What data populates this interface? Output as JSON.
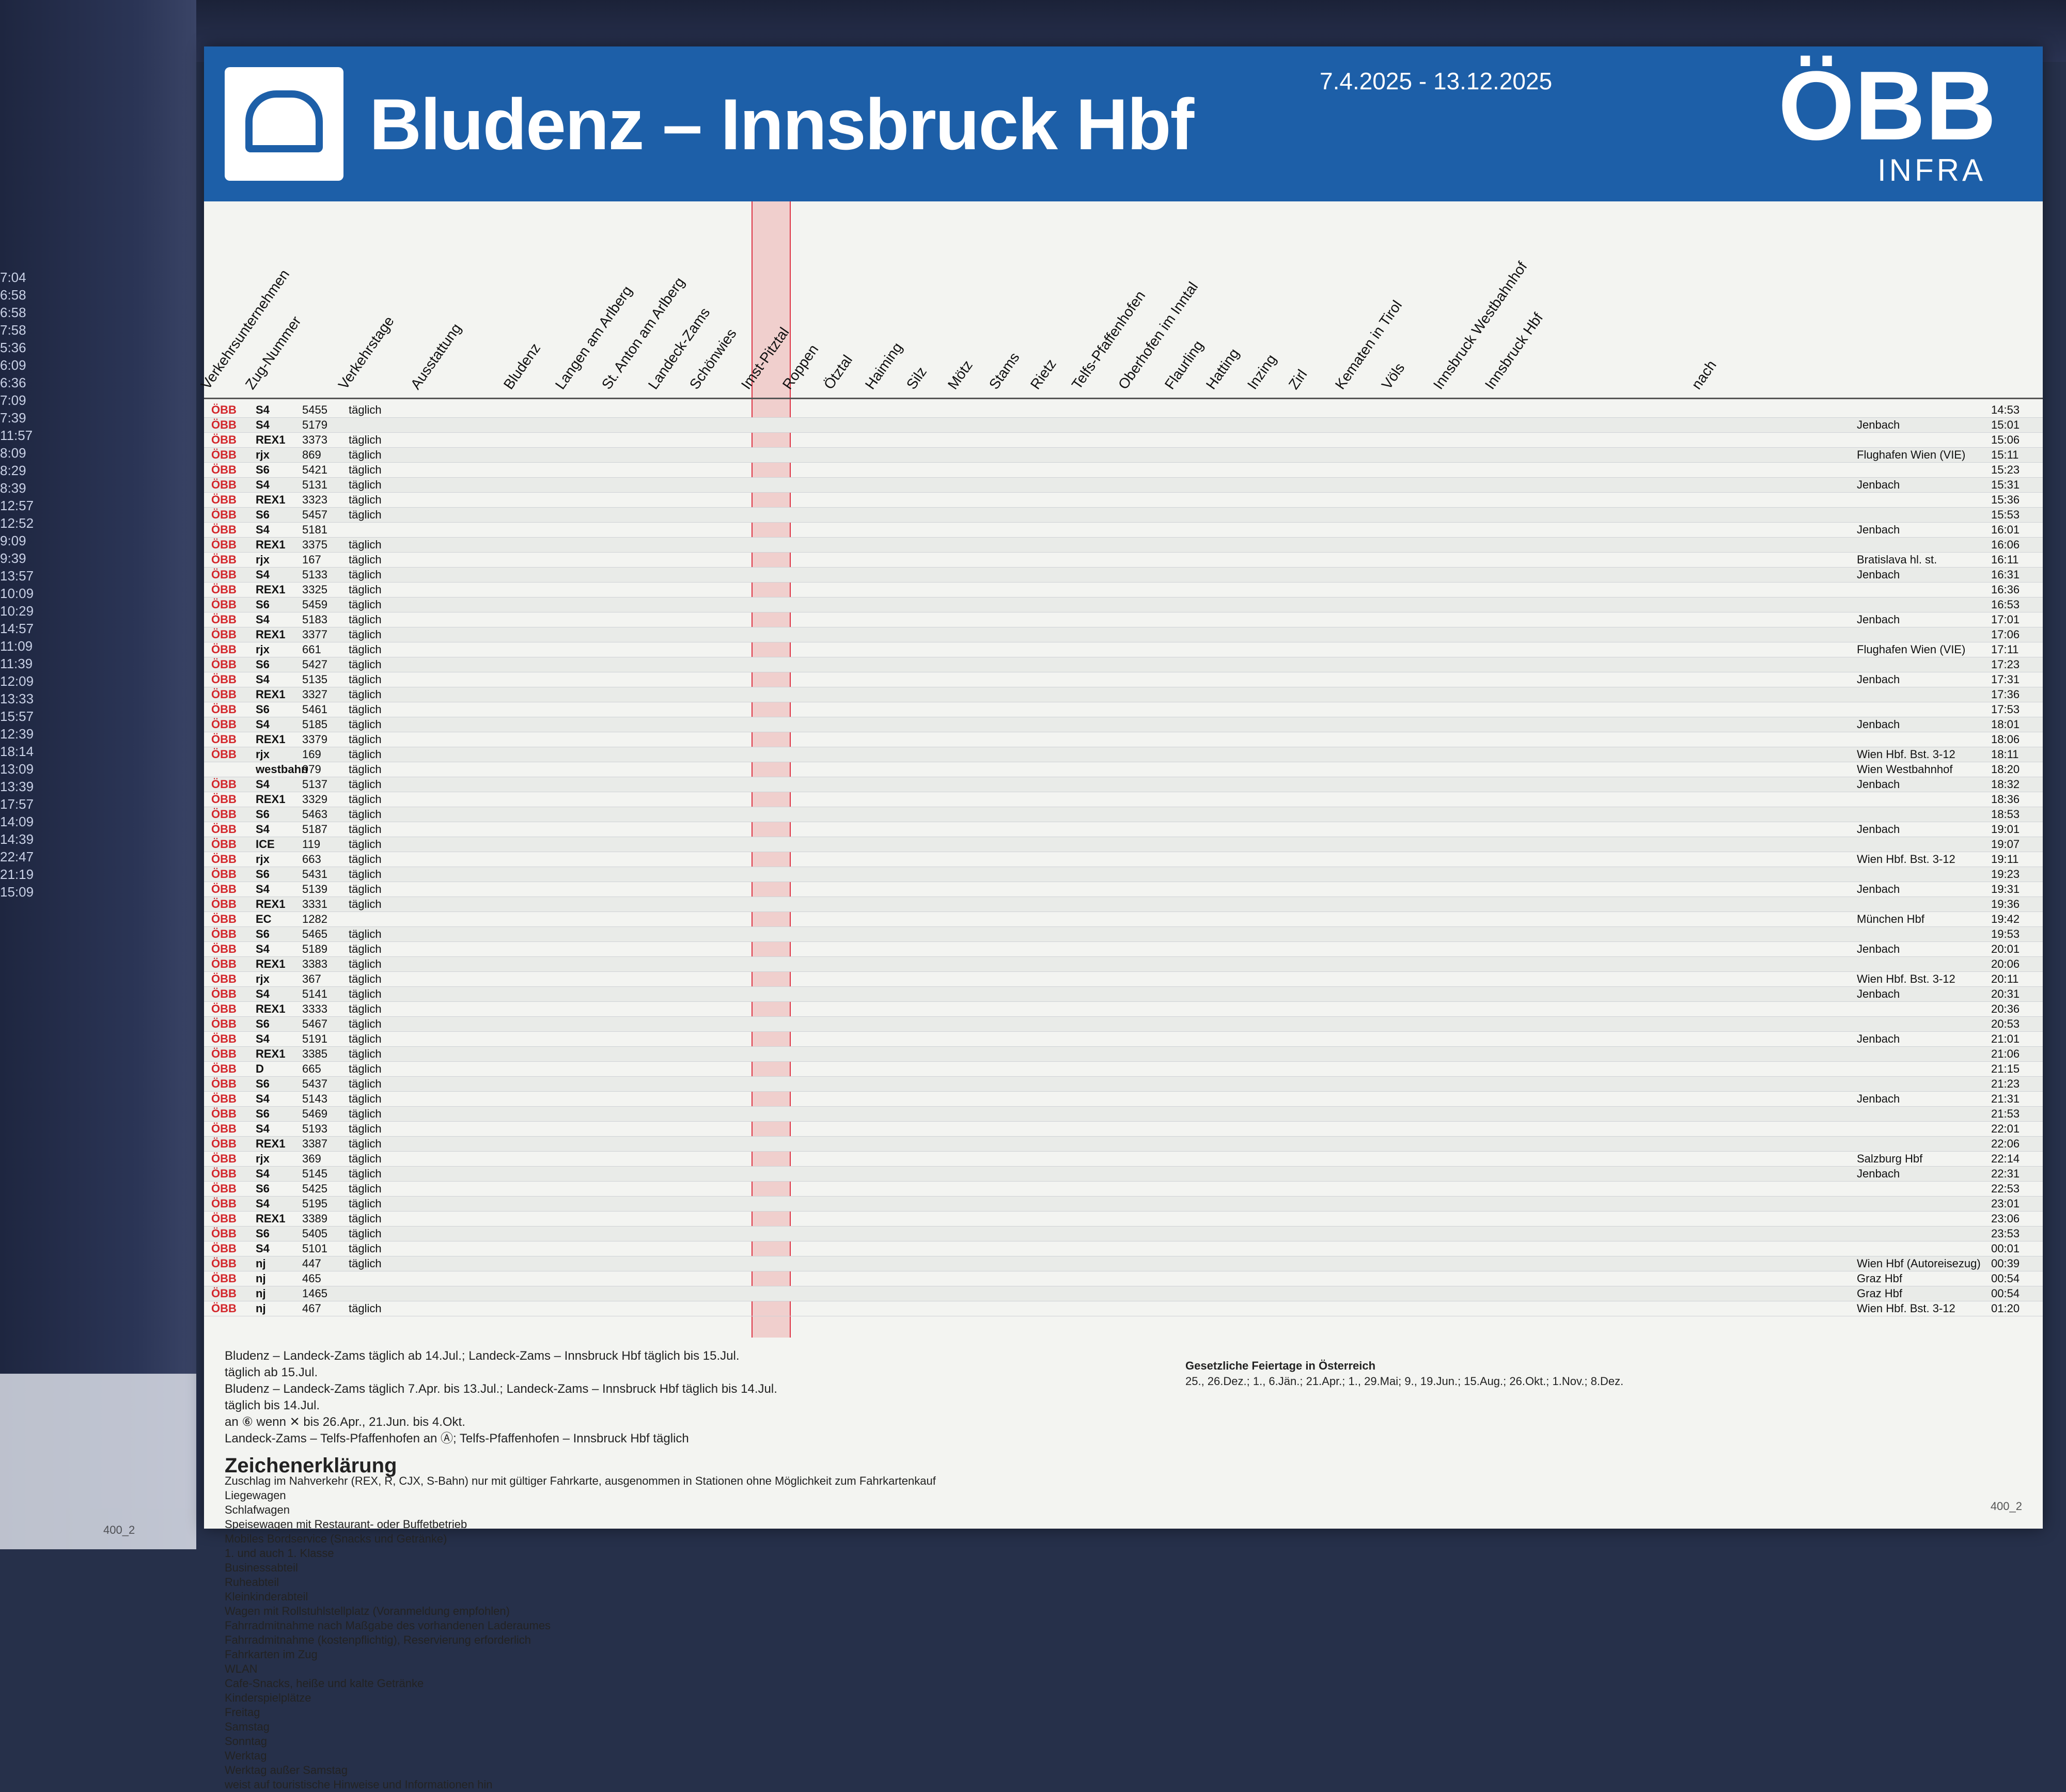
{
  "header": {
    "title": "Bludenz – Innsbruck Hbf",
    "validity": "7.4.2025 - 13.12.2025",
    "brand": "ÖBB",
    "brand_sub": "INFRA"
  },
  "columns": [
    "Verkehrsunternehmen",
    "Zug-Nummer",
    "Verkehrstage",
    "Ausstattung",
    "Bludenz",
    "Langen am Arlberg",
    "St. Anton am Arlberg",
    "Landeck-Zams",
    "Schönwies",
    "Imst-Pitztal",
    "Roppen",
    "Ötztal",
    "Haiming",
    "Silz",
    "Mötz",
    "Stams",
    "Rietz",
    "Telfs-Pfaffenhofen",
    "Oberhofen im Inntal",
    "Flaurling",
    "Hatting",
    "Inzing",
    "Zirl",
    "Kematen in Tirol",
    "Völs",
    "Innsbruck Westbahnhof",
    "Innsbruck Hbf",
    "nach"
  ],
  "rows": [
    {
      "op": "ÖBB",
      "type": "S4",
      "nr": "5455",
      "days": "täglich",
      "dest": "",
      "arr": "14:53"
    },
    {
      "op": "ÖBB",
      "type": "S4",
      "nr": "5179",
      "days": "",
      "dest": "Jenbach",
      "arr": "15:01"
    },
    {
      "op": "ÖBB",
      "type": "REX1",
      "nr": "3373",
      "days": "täglich",
      "dest": "",
      "arr": "15:06"
    },
    {
      "op": "ÖBB",
      "type": "rjx",
      "nr": "869",
      "days": "täglich",
      "dest": "Flughafen Wien (VIE)",
      "arr": "15:11"
    },
    {
      "op": "ÖBB",
      "type": "S6",
      "nr": "5421",
      "days": "täglich",
      "dest": "",
      "arr": "15:23"
    },
    {
      "op": "ÖBB",
      "type": "S4",
      "nr": "5131",
      "days": "täglich",
      "dest": "Jenbach",
      "arr": "15:31"
    },
    {
      "op": "ÖBB",
      "type": "REX1",
      "nr": "3323",
      "days": "täglich",
      "dest": "",
      "arr": "15:36"
    },
    {
      "op": "ÖBB",
      "type": "S6",
      "nr": "5457",
      "days": "täglich",
      "dest": "",
      "arr": "15:53"
    },
    {
      "op": "ÖBB",
      "type": "S4",
      "nr": "5181",
      "days": "",
      "dest": "Jenbach",
      "arr": "16:01"
    },
    {
      "op": "ÖBB",
      "type": "REX1",
      "nr": "3375",
      "days": "täglich",
      "dest": "",
      "arr": "16:06"
    },
    {
      "op": "ÖBB",
      "type": "rjx",
      "nr": "167",
      "days": "täglich",
      "dest": "Bratislava hl. st.",
      "arr": "16:11"
    },
    {
      "op": "ÖBB",
      "type": "S4",
      "nr": "5133",
      "days": "täglich",
      "dest": "Jenbach",
      "arr": "16:31"
    },
    {
      "op": "ÖBB",
      "type": "REX1",
      "nr": "3325",
      "days": "täglich",
      "dest": "",
      "arr": "16:36"
    },
    {
      "op": "ÖBB",
      "type": "S6",
      "nr": "5459",
      "days": "täglich",
      "dest": "",
      "arr": "16:53"
    },
    {
      "op": "ÖBB",
      "type": "S4",
      "nr": "5183",
      "days": "täglich",
      "dest": "Jenbach",
      "arr": "17:01"
    },
    {
      "op": "ÖBB",
      "type": "REX1",
      "nr": "3377",
      "days": "täglich",
      "dest": "",
      "arr": "17:06"
    },
    {
      "op": "ÖBB",
      "type": "rjx",
      "nr": "661",
      "days": "täglich",
      "dest": "Flughafen Wien (VIE)",
      "arr": "17:11"
    },
    {
      "op": "ÖBB",
      "type": "S6",
      "nr": "5427",
      "days": "täglich",
      "dest": "",
      "arr": "17:23"
    },
    {
      "op": "ÖBB",
      "type": "S4",
      "nr": "5135",
      "days": "täglich",
      "dest": "Jenbach",
      "arr": "17:31"
    },
    {
      "op": "ÖBB",
      "type": "REX1",
      "nr": "3327",
      "days": "täglich",
      "dest": "",
      "arr": "17:36"
    },
    {
      "op": "ÖBB",
      "type": "S6",
      "nr": "5461",
      "days": "täglich",
      "dest": "",
      "arr": "17:53"
    },
    {
      "op": "ÖBB",
      "type": "S4",
      "nr": "5185",
      "days": "täglich",
      "dest": "Jenbach",
      "arr": "18:01"
    },
    {
      "op": "ÖBB",
      "type": "REX1",
      "nr": "3379",
      "days": "täglich",
      "dest": "",
      "arr": "18:06"
    },
    {
      "op": "ÖBB",
      "type": "rjx",
      "nr": "169",
      "days": "täglich",
      "dest": "Wien Hbf. Bst. 3-12",
      "arr": "18:11"
    },
    {
      "op": "",
      "type": "westbahn",
      "nr": "979",
      "days": "täglich",
      "dest": "Wien Westbahnhof",
      "arr": "18:20"
    },
    {
      "op": "ÖBB",
      "type": "S4",
      "nr": "5137",
      "days": "täglich",
      "dest": "Jenbach",
      "arr": "18:32"
    },
    {
      "op": "ÖBB",
      "type": "REX1",
      "nr": "3329",
      "days": "täglich",
      "dest": "",
      "arr": "18:36"
    },
    {
      "op": "ÖBB",
      "type": "S6",
      "nr": "5463",
      "days": "täglich",
      "dest": "",
      "arr": "18:53"
    },
    {
      "op": "ÖBB",
      "type": "S4",
      "nr": "5187",
      "days": "täglich",
      "dest": "Jenbach",
      "arr": "19:01"
    },
    {
      "op": "ÖBB",
      "type": "ICE",
      "nr": "119",
      "days": "täglich",
      "dest": "",
      "arr": "19:07"
    },
    {
      "op": "ÖBB",
      "type": "rjx",
      "nr": "663",
      "days": "täglich",
      "dest": "Wien Hbf. Bst. 3-12",
      "arr": "19:11"
    },
    {
      "op": "ÖBB",
      "type": "S6",
      "nr": "5431",
      "days": "täglich",
      "dest": "",
      "arr": "19:23"
    },
    {
      "op": "ÖBB",
      "type": "S4",
      "nr": "5139",
      "days": "täglich",
      "dest": "Jenbach",
      "arr": "19:31"
    },
    {
      "op": "ÖBB",
      "type": "REX1",
      "nr": "3331",
      "days": "täglich",
      "dest": "",
      "arr": "19:36"
    },
    {
      "op": "ÖBB",
      "type": "EC",
      "nr": "1282",
      "days": "",
      "dest": "München Hbf",
      "arr": "19:42"
    },
    {
      "op": "ÖBB",
      "type": "S6",
      "nr": "5465",
      "days": "täglich",
      "dest": "",
      "arr": "19:53"
    },
    {
      "op": "ÖBB",
      "type": "S4",
      "nr": "5189",
      "days": "täglich",
      "dest": "Jenbach",
      "arr": "20:01"
    },
    {
      "op": "ÖBB",
      "type": "REX1",
      "nr": "3383",
      "days": "täglich",
      "dest": "",
      "arr": "20:06"
    },
    {
      "op": "ÖBB",
      "type": "rjx",
      "nr": "367",
      "days": "täglich",
      "dest": "Wien Hbf. Bst. 3-12",
      "arr": "20:11"
    },
    {
      "op": "ÖBB",
      "type": "S4",
      "nr": "5141",
      "days": "täglich",
      "dest": "Jenbach",
      "arr": "20:31"
    },
    {
      "op": "ÖBB",
      "type": "REX1",
      "nr": "3333",
      "days": "täglich",
      "dest": "",
      "arr": "20:36"
    },
    {
      "op": "ÖBB",
      "type": "S6",
      "nr": "5467",
      "days": "täglich",
      "dest": "",
      "arr": "20:53"
    },
    {
      "op": "ÖBB",
      "type": "S4",
      "nr": "5191",
      "days": "täglich",
      "dest": "Jenbach",
      "arr": "21:01"
    },
    {
      "op": "ÖBB",
      "type": "REX1",
      "nr": "3385",
      "days": "täglich",
      "dest": "",
      "arr": "21:06"
    },
    {
      "op": "ÖBB",
      "type": "D",
      "nr": "665",
      "days": "täglich",
      "dest": "",
      "arr": "21:15"
    },
    {
      "op": "ÖBB",
      "type": "S6",
      "nr": "5437",
      "days": "täglich",
      "dest": "",
      "arr": "21:23"
    },
    {
      "op": "ÖBB",
      "type": "S4",
      "nr": "5143",
      "days": "täglich",
      "dest": "Jenbach",
      "arr": "21:31"
    },
    {
      "op": "ÖBB",
      "type": "S6",
      "nr": "5469",
      "days": "täglich",
      "dest": "",
      "arr": "21:53"
    },
    {
      "op": "ÖBB",
      "type": "S4",
      "nr": "5193",
      "days": "täglich",
      "dest": "",
      "arr": "22:01"
    },
    {
      "op": "ÖBB",
      "type": "REX1",
      "nr": "3387",
      "days": "täglich",
      "dest": "",
      "arr": "22:06"
    },
    {
      "op": "ÖBB",
      "type": "rjx",
      "nr": "369",
      "days": "täglich",
      "dest": "Salzburg Hbf",
      "arr": "22:14"
    },
    {
      "op": "ÖBB",
      "type": "S4",
      "nr": "5145",
      "days": "täglich",
      "dest": "Jenbach",
      "arr": "22:31"
    },
    {
      "op": "ÖBB",
      "type": "S6",
      "nr": "5425",
      "days": "täglich",
      "dest": "",
      "arr": "22:53"
    },
    {
      "op": "ÖBB",
      "type": "S4",
      "nr": "5195",
      "days": "täglich",
      "dest": "",
      "arr": "23:01"
    },
    {
      "op": "ÖBB",
      "type": "REX1",
      "nr": "3389",
      "days": "täglich",
      "dest": "",
      "arr": "23:06"
    },
    {
      "op": "ÖBB",
      "type": "S6",
      "nr": "5405",
      "days": "täglich",
      "dest": "",
      "arr": "23:53"
    },
    {
      "op": "ÖBB",
      "type": "S4",
      "nr": "5101",
      "days": "täglich",
      "dest": "",
      "arr": "00:01"
    },
    {
      "op": "ÖBB",
      "type": "nj",
      "nr": "447",
      "days": "täglich",
      "dest": "Wien Hbf (Autoreisezug)",
      "arr": "00:39"
    },
    {
      "op": "ÖBB",
      "type": "nj",
      "nr": "465",
      "days": "",
      "dest": "Graz Hbf",
      "arr": "00:54"
    },
    {
      "op": "ÖBB",
      "type": "nj",
      "nr": "1465",
      "days": "",
      "dest": "Graz Hbf",
      "arr": "00:54"
    },
    {
      "op": "ÖBB",
      "type": "nj",
      "nr": "467",
      "days": "täglich",
      "dest": "Wien Hbf. Bst. 3-12",
      "arr": "01:20"
    }
  ],
  "notes": [
    "Bludenz – Landeck-Zams täglich ab 14.Jul.; Landeck-Zams – Innsbruck Hbf täglich bis 15.Jul.",
    "täglich ab 15.Jul.",
    "Bludenz – Landeck-Zams täglich 7.Apr. bis 13.Jul.; Landeck-Zams – Innsbruck Hbf täglich bis 14.Jul.",
    "täglich bis 14.Jul.",
    "an ⑥ wenn ✕ bis 26.Apr., 21.Jun. bis 4.Okt.",
    "Landeck-Zams – Telfs-Pfaffenhofen an Ⓐ; Telfs-Pfaffenhofen – Innsbruck Hbf täglich"
  ],
  "legend": {
    "title": "Zeichenerklärung",
    "items": [
      "Zuschlag im Nahverkehr (REX, R, CJX, S-Bahn) nur mit gültiger Fahrkarte, ausgenommen in Stationen ohne Möglichkeit zum Fahrkartenkauf",
      "Liegewagen",
      "Schlafwagen",
      "Speisewagen mit Restaurant- oder Buffetbetrieb",
      "Mobiles Bordservice (Snacks und Getränke)",
      "1. und auch 1. Klasse",
      "Businessabteil",
      "Ruheabteil",
      "Kleinkinderabteil",
      "Wagen mit Rollstuhlstellplatz (Voranmeldung empfohlen)",
      "Fahrradmitnahme nach Maßgabe des vorhandenen Laderaumes",
      "Fahrradmitnahme (kostenpflichtig), Reservierung erforderlich",
      "Fahrkarten im Zug",
      "WLAN",
      "Cafe-Snacks, heiße und kalte Getränke",
      "Kinderspielplätze",
      "Freitag",
      "Samstag",
      "Sonntag",
      "Werktag",
      "Werktag außer Samstag",
      "weist auf touristische Hinweise und Informationen hin"
    ]
  },
  "holidays": {
    "title": "Gesetzliche Feiertage in Österreich",
    "text": "25., 26.Dez.; 1., 6.Jän.; 21.Apr.; 1., 29.Mai; 9., 19.Jun.; 15.Aug.; 26.Okt.; 1.Nov.; 8.Dez."
  },
  "footer": {
    "page": "400_2"
  },
  "side": {
    "times": [
      "7:04",
      "6:58",
      "6:58",
      "7:58",
      "5:36",
      "6:09",
      "6:36",
      "7:09",
      "7:39",
      "11:57",
      "8:09",
      "8:29",
      "8:39",
      "12:57",
      "12:52",
      "9:09",
      "9:39",
      "13:57",
      "10:09",
      "10:29",
      "14:57",
      "11:09",
      "11:39",
      "12:09",
      "13:33",
      "15:57",
      "12:39",
      "18:14",
      "13:09",
      "13:39",
      "17:57",
      "14:09",
      "14:39",
      "22:47",
      "21:19",
      "15:09"
    ],
    "page": "400_2"
  },
  "colors": {
    "brand_blue": "#1d5fa8",
    "operator_red": "#d3262b",
    "highlight": "#eb6e6e"
  }
}
